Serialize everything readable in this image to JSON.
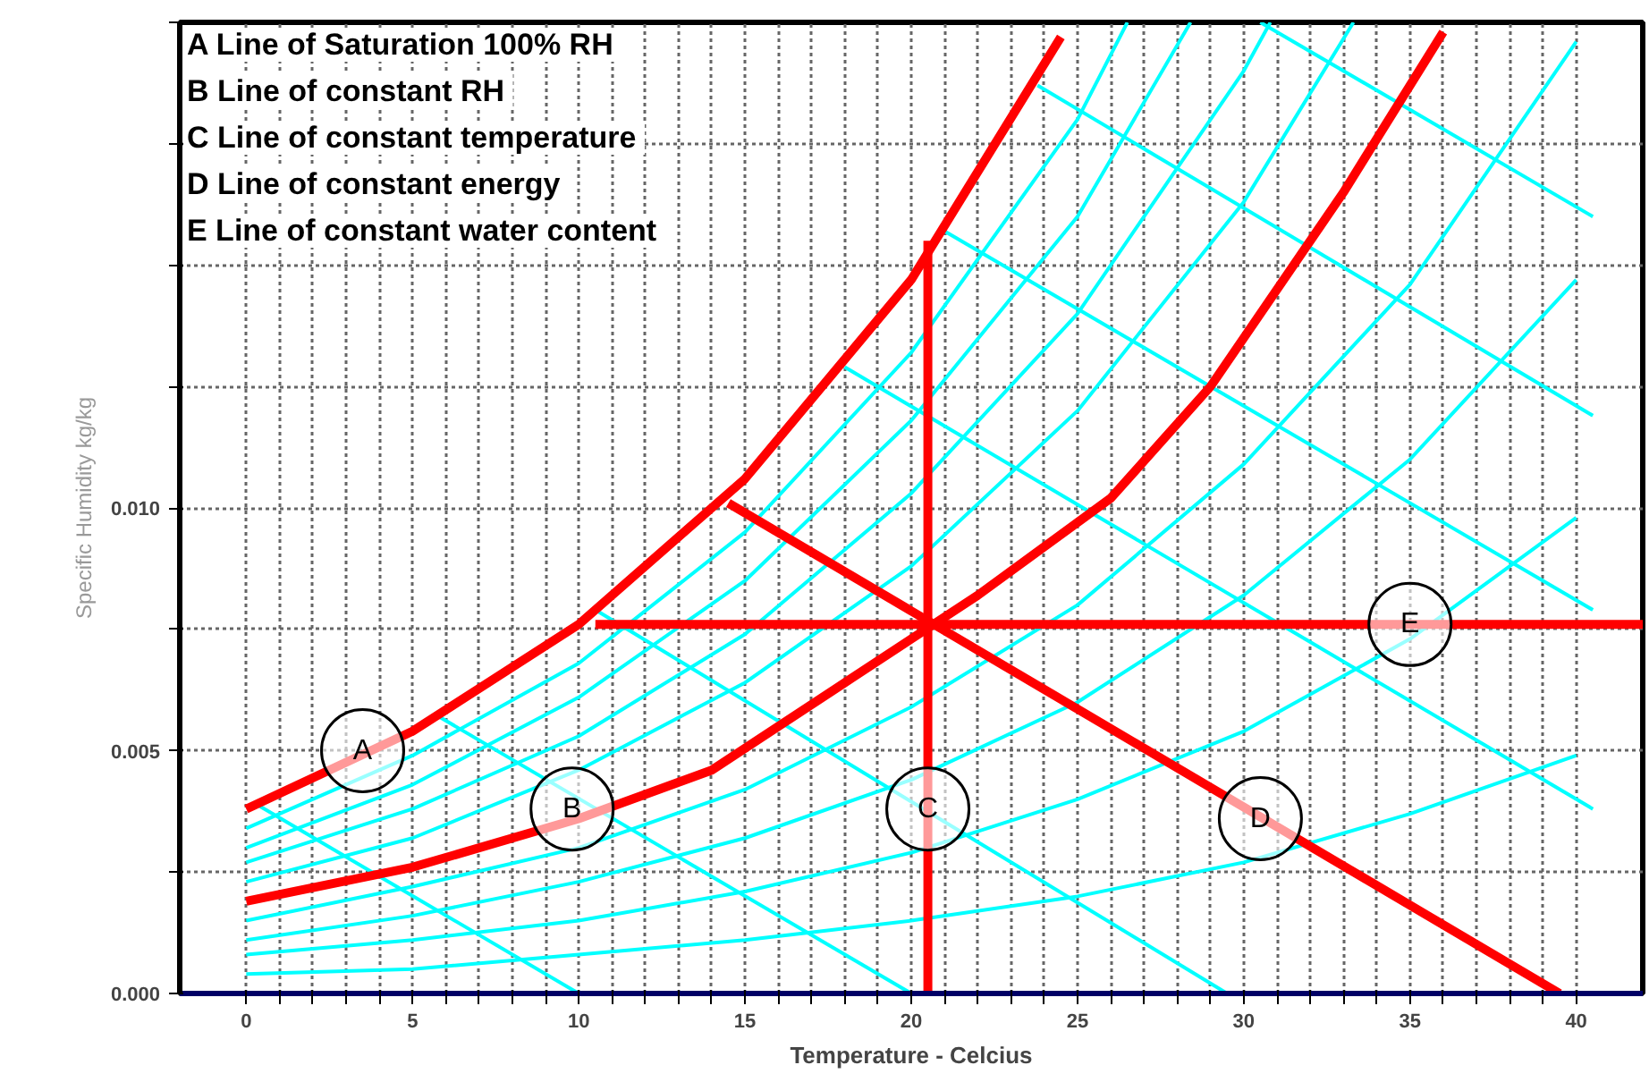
{
  "chart_data": {
    "type": "line",
    "xlabel": "Temperature - Celcius",
    "ylabel": "Specific Humidity kg/kg",
    "xlim": [
      -2,
      42
    ],
    "ylim": [
      0,
      0.02
    ],
    "xticks": [
      0,
      {
        "value": 1,
        "label": null
      },
      {
        "value": 2,
        "label": null
      },
      {
        "value": 3,
        "label": null
      },
      {
        "value": 4,
        "label": null
      },
      5,
      {
        "value": 6,
        "label": null
      },
      {
        "value": 7,
        "label": null
      },
      {
        "value": 8,
        "label": null
      },
      {
        "value": 9,
        "label": null
      },
      10,
      {
        "value": 11,
        "label": null
      },
      {
        "value": 12,
        "label": null
      },
      {
        "value": 13,
        "label": null
      },
      {
        "value": 14,
        "label": null
      },
      15,
      {
        "value": 16,
        "label": null
      },
      {
        "value": 17,
        "label": null
      },
      {
        "value": 18,
        "label": null
      },
      {
        "value": 19,
        "label": null
      },
      20,
      {
        "value": 21,
        "label": null
      },
      {
        "value": 22,
        "label": null
      },
      {
        "value": 23,
        "label": null
      },
      {
        "value": 24,
        "label": null
      },
      25,
      {
        "value": 26,
        "label": null
      },
      {
        "value": 27,
        "label": null
      },
      {
        "value": 28,
        "label": null
      },
      {
        "value": 29,
        "label": null
      },
      30,
      {
        "value": 31,
        "label": null
      },
      {
        "value": 32,
        "label": null
      },
      {
        "value": 33,
        "label": null
      },
      {
        "value": 34,
        "label": null
      },
      35,
      {
        "value": 36,
        "label": null
      },
      {
        "value": 37,
        "label": null
      },
      {
        "value": 38,
        "label": null
      },
      {
        "value": 39,
        "label": null
      },
      40
    ],
    "yticks": [
      {
        "value": 0,
        "label": "0.000"
      },
      {
        "value": 0.0025,
        "label": null
      },
      {
        "value": 0.005,
        "label": "0.005"
      },
      {
        "value": 0.0075,
        "label": null
      },
      {
        "value": 0.01,
        "label": "0.010"
      },
      {
        "value": 0.0125,
        "label": null
      },
      {
        "value": 0.015,
        "label": null
      },
      {
        "value": 0.0175,
        "label": null
      },
      {
        "value": 0.02,
        "label": null
      }
    ],
    "grid": true,
    "line_style": "solid",
    "marker": "none",
    "series": [
      {
        "color": "#00ffff",
        "x": [
          0,
          5,
          10,
          15,
          20,
          25,
          30,
          35,
          40
        ],
        "values": [
          0.0004,
          0.0005,
          0.0008,
          0.0011,
          0.0015,
          0.002,
          0.0027,
          0.0037,
          0.0049
        ]
      },
      {
        "color": "#00ffff",
        "x": [
          0,
          5,
          10,
          15,
          20,
          25,
          30,
          35,
          40
        ],
        "values": [
          0.0008,
          0.0011,
          0.0015,
          0.0021,
          0.0029,
          0.004,
          0.0054,
          0.0073,
          0.0098
        ]
      },
      {
        "color": "#00ffff",
        "x": [
          0,
          5,
          10,
          15,
          20,
          25,
          30,
          35,
          40
        ],
        "values": [
          0.0011,
          0.0016,
          0.0023,
          0.0032,
          0.0044,
          0.006,
          0.0082,
          0.011,
          0.0147
        ]
      },
      {
        "color": "#00ffff",
        "x": [
          0,
          5,
          10,
          15,
          20,
          25,
          30,
          35,
          40
        ],
        "values": [
          0.0015,
          0.0022,
          0.003,
          0.0042,
          0.0059,
          0.008,
          0.0109,
          0.0146,
          0.0196
        ]
      },
      {
        "color": "#00ffff",
        "x": [
          0,
          5,
          10,
          15,
          20,
          25,
          30,
          33.3
        ],
        "values": [
          0.0023,
          0.0032,
          0.0046,
          0.0064,
          0.0088,
          0.012,
          0.0163,
          0.02
        ]
      },
      {
        "color": "#00ffff",
        "x": [
          0,
          5,
          10,
          15,
          20,
          25,
          30,
          30.8
        ],
        "values": [
          0.0027,
          0.0038,
          0.0053,
          0.0074,
          0.0103,
          0.014,
          0.019,
          0.02
        ]
      },
      {
        "color": "#00ffff",
        "x": [
          0,
          5,
          10,
          15,
          20,
          25,
          28.4
        ],
        "values": [
          0.003,
          0.0043,
          0.0061,
          0.0085,
          0.0118,
          0.016,
          0.02
        ]
      },
      {
        "color": "#00ffff",
        "x": [
          0,
          5,
          10,
          15,
          20,
          25,
          26.5
        ],
        "values": [
          0.0034,
          0.0049,
          0.0068,
          0.0095,
          0.0132,
          0.018,
          0.02
        ]
      },
      {
        "color": "#00ffff",
        "x": [
          0.3,
          10
        ],
        "values": [
          0.0039,
          0
        ]
      },
      {
        "color": "#00ffff",
        "x": [
          5.8,
          20
        ],
        "values": [
          0.0057,
          0
        ]
      },
      {
        "color": "#00ffff",
        "x": [
          10.5,
          29.5
        ],
        "values": [
          0.0079,
          0
        ]
      },
      {
        "color": "#00ffff",
        "x": [
          18,
          40.5
        ],
        "values": [
          0.0129,
          0.0038
        ]
      },
      {
        "color": "#00ffff",
        "x": [
          21,
          40.5
        ],
        "values": [
          0.0157,
          0.0079
        ]
      },
      {
        "color": "#00ffff",
        "x": [
          23.8,
          40.5
        ],
        "values": [
          0.0187,
          0.0119
        ]
      },
      {
        "color": "#00ffff",
        "x": [
          30.5,
          40.5
        ],
        "values": [
          0.02,
          0.016
        ]
      },
      {
        "color": "#ff0000",
        "x": [
          0,
          5,
          10,
          15,
          20,
          24.5
        ],
        "values": [
          0.0038,
          0.0054,
          0.0076,
          0.0106,
          0.0147,
          0.0197
        ]
      },
      {
        "color": "#ff0000",
        "x": [
          0,
          5,
          10,
          14,
          18,
          22,
          26,
          29,
          33,
          36
        ],
        "values": [
          0.0019,
          0.0026,
          0.0036,
          0.0046,
          0.0064,
          0.0082,
          0.0102,
          0.0125,
          0.0165,
          0.0198
        ]
      },
      {
        "color": "#ff0000",
        "x": [
          20.5,
          20.5
        ],
        "values": [
          0,
          0.0155
        ]
      },
      {
        "color": "#ff0000",
        "x": [
          14.5,
          39.5
        ],
        "values": [
          0.0101,
          0
        ]
      },
      {
        "color": "#ff0000",
        "x": [
          10.5,
          42
        ],
        "values": [
          0.0076,
          0.0076
        ]
      }
    ],
    "annotations": [
      "A  Line of Saturation 100% RH",
      "B  Line of constant RH",
      "C  Line of constant temperature",
      "D  Line of constant energy",
      "E  Line of constant water content",
      {
        "text": "A",
        "x": 3.5,
        "y": 0.005
      },
      {
        "text": "B",
        "x": 9.8,
        "y": 0.0038
      },
      {
        "text": "C",
        "x": 20.5,
        "y": 0.0038
      },
      {
        "text": "D",
        "x": 30.5,
        "y": 0.0036
      },
      {
        "text": "E",
        "x": 35,
        "y": 0.0076
      }
    ]
  }
}
